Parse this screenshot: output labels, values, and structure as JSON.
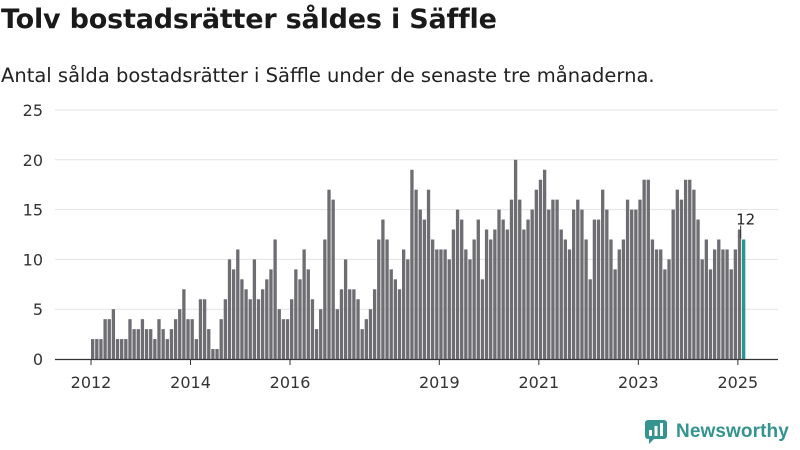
{
  "header": {
    "title": "Tolv bostadsrätter såldes i Säffle",
    "subtitle": "Antal sålda bostadsrätter i Säffle under de senaste tre månaderna."
  },
  "brand": {
    "name": "Newsworthy",
    "color": "#34948f"
  },
  "colors": {
    "bar": "#6e6d72",
    "highlight": "#2a9490",
    "grid": "#e3e3e3",
    "axis": "#333333"
  },
  "chart_data": {
    "type": "bar",
    "title": "Tolv bostadsrätter såldes i Säffle",
    "xlabel": "",
    "ylabel": "",
    "ylim": [
      0,
      25
    ],
    "yticks": [
      0,
      5,
      10,
      15,
      20,
      25
    ],
    "x_tick_labels": [
      "2012",
      "2014",
      "2016",
      "2019",
      "2021",
      "2023",
      "2025"
    ],
    "start": "2012-01",
    "end": "2025-09",
    "last_label": "12",
    "values": [
      2,
      2,
      2,
      4,
      4,
      5,
      2,
      2,
      2,
      4,
      3,
      3,
      4,
      3,
      3,
      2,
      4,
      3,
      2,
      3,
      4,
      5,
      7,
      4,
      4,
      2,
      6,
      6,
      3,
      1,
      1,
      4,
      6,
      10,
      9,
      11,
      8,
      7,
      6,
      10,
      6,
      7,
      8,
      9,
      12,
      5,
      4,
      4,
      6,
      9,
      8,
      11,
      9,
      6,
      3,
      5,
      12,
      17,
      16,
      5,
      7,
      10,
      7,
      7,
      6,
      3,
      4,
      5,
      7,
      12,
      14,
      12,
      9,
      8,
      7,
      11,
      10,
      19,
      17,
      15,
      14,
      17,
      12,
      11,
      11,
      11,
      10,
      13,
      15,
      14,
      11,
      10,
      12,
      14,
      8,
      13,
      12,
      13,
      15,
      14,
      13,
      16,
      20,
      16,
      13,
      14,
      15,
      17,
      18,
      19,
      15,
      16,
      16,
      13,
      12,
      11,
      15,
      16,
      15,
      12,
      8,
      14,
      14,
      17,
      15,
      12,
      9,
      11,
      12,
      16,
      15,
      15,
      16,
      18,
      18,
      12,
      11,
      11,
      9,
      10,
      15,
      17,
      16,
      18,
      18,
      17,
      14,
      10,
      12,
      9,
      11,
      12,
      11,
      11,
      9,
      11,
      13,
      12
    ]
  }
}
